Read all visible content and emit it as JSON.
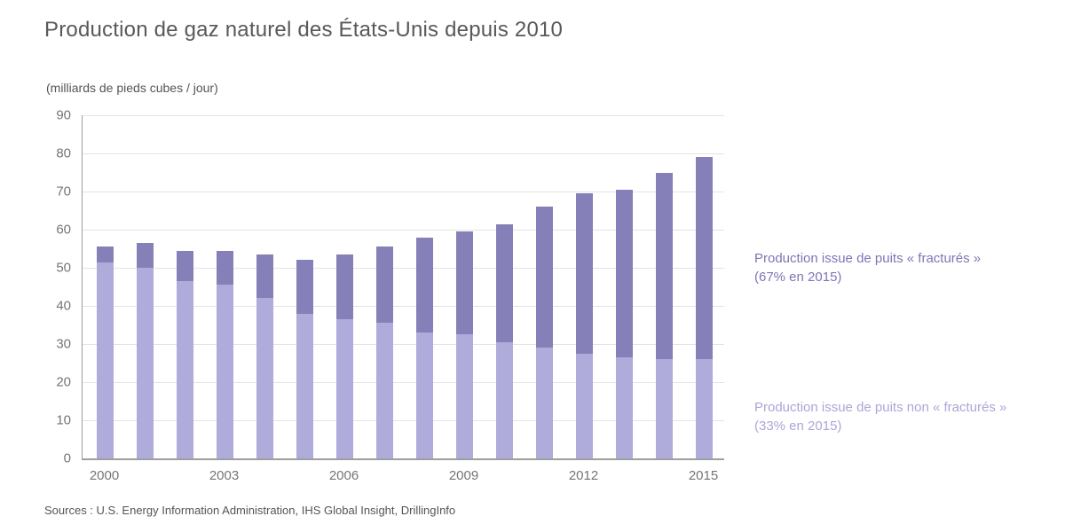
{
  "header": {
    "title": "Production de gaz naturel des États-Unis depuis 2010",
    "subtitle": "(milliards de pieds cubes / jour)"
  },
  "legend": {
    "fractured": {
      "line1": "Production issue de puits « fracturés »",
      "line2": "(67% en 2015)"
    },
    "non_fractured": {
      "line1": "Production issue de puits non « fracturés »",
      "line2": "(33% en 2015)"
    }
  },
  "footer": {
    "source": "Sources : U.S. Energy Information Administration, IHS Global Insight, DrillingInfo"
  },
  "colors": {
    "fractured_bar": "#8580B7",
    "non_fractured_bar": "#AFABDB",
    "fractured_legend_text": "#7C76B5",
    "non_fractured_legend_text": "#ABA6D8",
    "gridline": "#E3E3E3",
    "axis_line": "#9E9E9E",
    "title_text": "#58595B",
    "tick_text": "#757575"
  },
  "chart_data": {
    "type": "bar",
    "stacked": true,
    "title": "Production de gaz naturel des États-Unis depuis 2010",
    "ylabel": "(milliards de pieds cubes / jour)",
    "xlabel": "",
    "ylim": [
      0,
      90
    ],
    "yticks": [
      0,
      10,
      20,
      30,
      40,
      50,
      60,
      70,
      80,
      90
    ],
    "grid": true,
    "legend_position": "right",
    "categories": [
      2000,
      2001,
      2002,
      2003,
      2004,
      2005,
      2006,
      2007,
      2008,
      2009,
      2010,
      2011,
      2012,
      2013,
      2014,
      2015
    ],
    "xticks_shown": [
      "2000",
      "2003",
      "2006",
      "2009",
      "2012",
      "2015"
    ],
    "series": [
      {
        "name": "Production issue de puits non « fracturés » (33% en 2015)",
        "color": "#AFABDB",
        "values": [
          51.5,
          50.0,
          46.5,
          45.5,
          42.0,
          38.0,
          36.5,
          35.5,
          33.0,
          32.5,
          30.5,
          29.0,
          27.5,
          26.5,
          26.0,
          26.0
        ]
      },
      {
        "name": "Production issue de puits « fracturés » (67% en 2015)",
        "color": "#8580B7",
        "values": [
          4.0,
          6.5,
          8.0,
          9.0,
          11.5,
          14.0,
          17.0,
          20.0,
          25.0,
          27.0,
          31.0,
          37.0,
          42.0,
          44.0,
          49.0,
          53.0
        ]
      }
    ],
    "totals": [
      55.5,
      56.5,
      54.5,
      54.5,
      53.5,
      52.0,
      53.5,
      55.5,
      58.0,
      59.5,
      61.5,
      66.0,
      69.5,
      70.5,
      75.0,
      79.0
    ]
  }
}
